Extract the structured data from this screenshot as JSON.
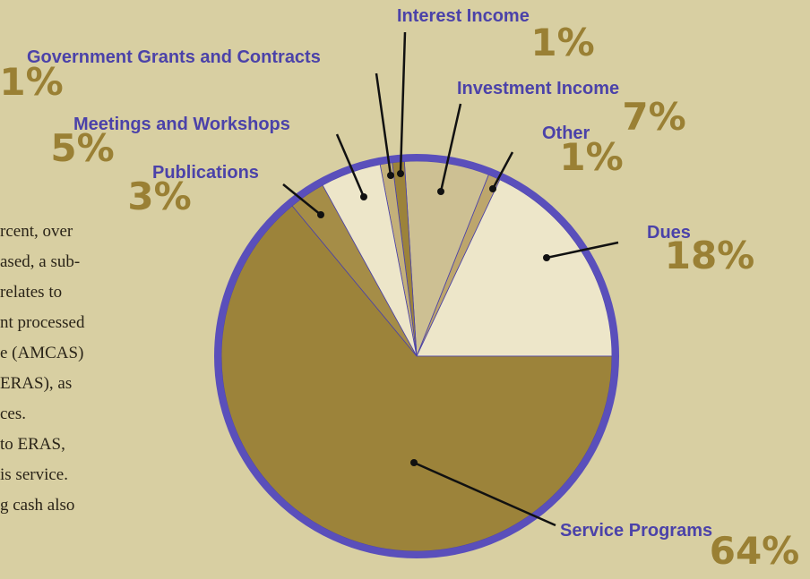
{
  "side_text": [
    "rcent, over",
    "ased, a sub-",
    "relates to",
    "nt processed",
    "e (AMCAS)",
    "ERAS), as",
    "ces.",
    "to ERAS,",
    "is service.",
    "g cash also"
  ],
  "chart_data": {
    "type": "pie",
    "categories": [
      "Dues",
      "Other",
      "Investment Income",
      "Interest Income",
      "Government Grants and Contracts",
      "Meetings and Workshops",
      "Publications",
      "Service Programs"
    ],
    "values": [
      18,
      1,
      7,
      1,
      1,
      5,
      3,
      64
    ],
    "value_labels": [
      "18%",
      "1%",
      "7%",
      "1%",
      "1%",
      "5%",
      "3%",
      "64%"
    ],
    "colors": [
      "#ede6c9",
      "#bda66c",
      "#cdc093",
      "#9c833a",
      "#c3b07a",
      "#ede6c9",
      "#a58d47",
      "#9c833a"
    ]
  }
}
